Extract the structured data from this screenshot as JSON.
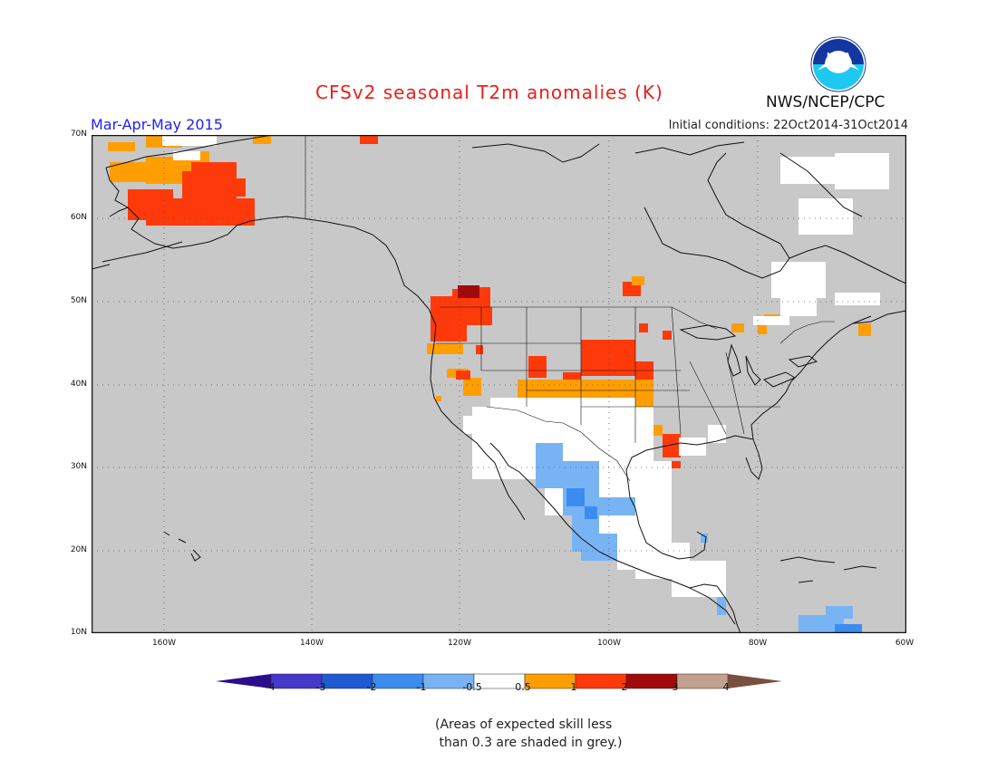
{
  "header": {
    "title": "CFSv2 seasonal T2m anomalies (K)",
    "period": "Mar-Apr-May 2015",
    "initial_conditions": "Initial conditions: 22Oct2014-31Oct2014",
    "agency": "NWS/NCEP/CPC",
    "logo_text": "NOAA"
  },
  "map": {
    "region": "North America",
    "background_color": "#c8c8c8",
    "lat_labels": [
      "70N",
      "60N",
      "50N",
      "40N",
      "30N",
      "20N",
      "10N"
    ],
    "lon_labels": [
      "160W",
      "140W",
      "120W",
      "100W",
      "80W",
      "60W"
    ],
    "gridlines": "dotted",
    "colors": {
      "grey_no_skill": "#c8c8c8",
      "neutral": "#ffffff",
      "warm_0_5_to_1": "#ff9e00",
      "warm_1_to_2": "#ff3a0a",
      "warm_2_to_3": "#a10a0a",
      "cool_minus1_to_minus0_5": "#78b4f4",
      "cool_minus2_to_minus1": "#3c8cf0"
    }
  },
  "colorbar": {
    "labels": [
      "-4",
      "-3",
      "-2",
      "-1",
      "-0.5",
      "0.5",
      "1",
      "2",
      "3",
      "4"
    ],
    "colors": [
      "#2a0f8c",
      "#4638c8",
      "#1e5ad2",
      "#3c8cf0",
      "#78b4f4",
      "#ffffff",
      "#ff9e00",
      "#ff3a0a",
      "#a10a0a",
      "#c4a090",
      "#785040"
    ]
  },
  "footnote": "(Areas of expected skill less\n than 0.3 are shaded in grey.)"
}
